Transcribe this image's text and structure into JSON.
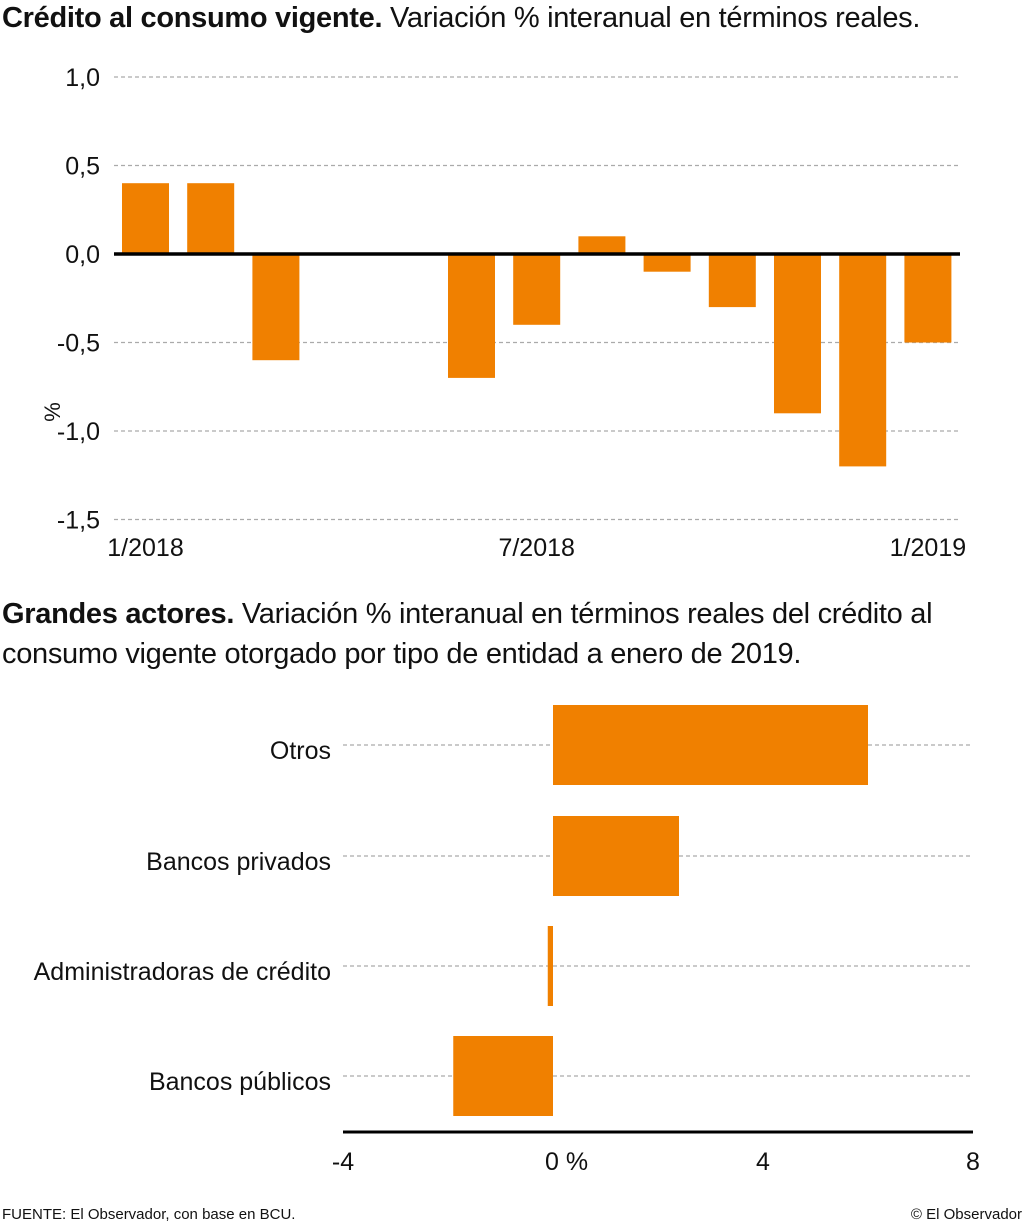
{
  "chart_data": [
    {
      "type": "bar",
      "title": "Crédito al consumo vigente.",
      "subtitle": "Variación % interanual en términos reales.",
      "xlabel": "",
      "ylabel": "%",
      "categories": [
        "1/2018",
        "2/2018",
        "3/2018",
        "4/2018",
        "5/2018",
        "6/2018",
        "7/2018",
        "8/2018",
        "9/2018",
        "10/2018",
        "11/2018",
        "12/2018",
        "1/2019"
      ],
      "values": [
        0.4,
        0.4,
        -0.6,
        0.0,
        0.0,
        -0.7,
        -0.4,
        0.1,
        -0.1,
        -0.3,
        -0.9,
        -1.2,
        -0.5
      ],
      "x_tick_labels": [
        {
          "category": "1/2018",
          "label": "1/2018"
        },
        {
          "category": "7/2018",
          "label": "7/2018"
        },
        {
          "category": "1/2019",
          "label": "1/2019"
        }
      ],
      "y_ticks": [
        1.0,
        0.5,
        0.0,
        -0.5,
        -1.0,
        -1.5
      ],
      "y_tick_labels": [
        "1,0",
        "0,5",
        "0,0",
        "-0,5",
        "-1,0",
        "-1,5"
      ],
      "ylim": [
        -1.5,
        1.0
      ],
      "grid": true,
      "color": "#f08000"
    },
    {
      "type": "bar",
      "orientation": "horizontal",
      "title": "Grandes actores.",
      "subtitle": "Variación % interanual en términos reales del crédito al consumo vigente otorgado por tipo de entidad a enero de 2019.",
      "categories": [
        "Otros",
        "Bancos privados",
        "Administradoras de crédito",
        "Bancos públicos"
      ],
      "values": [
        6.0,
        2.4,
        -0.1,
        -1.9
      ],
      "x_ticks": [
        -4,
        0,
        4,
        8
      ],
      "x_tick_labels": [
        "-4",
        "0 %",
        "4",
        "8"
      ],
      "xlim": [
        -4,
        8
      ],
      "grid": true,
      "color": "#f08000"
    }
  ],
  "footer": {
    "source": "FUENTE: El Observador, con base en BCU.",
    "copyright": "© El Observador"
  }
}
